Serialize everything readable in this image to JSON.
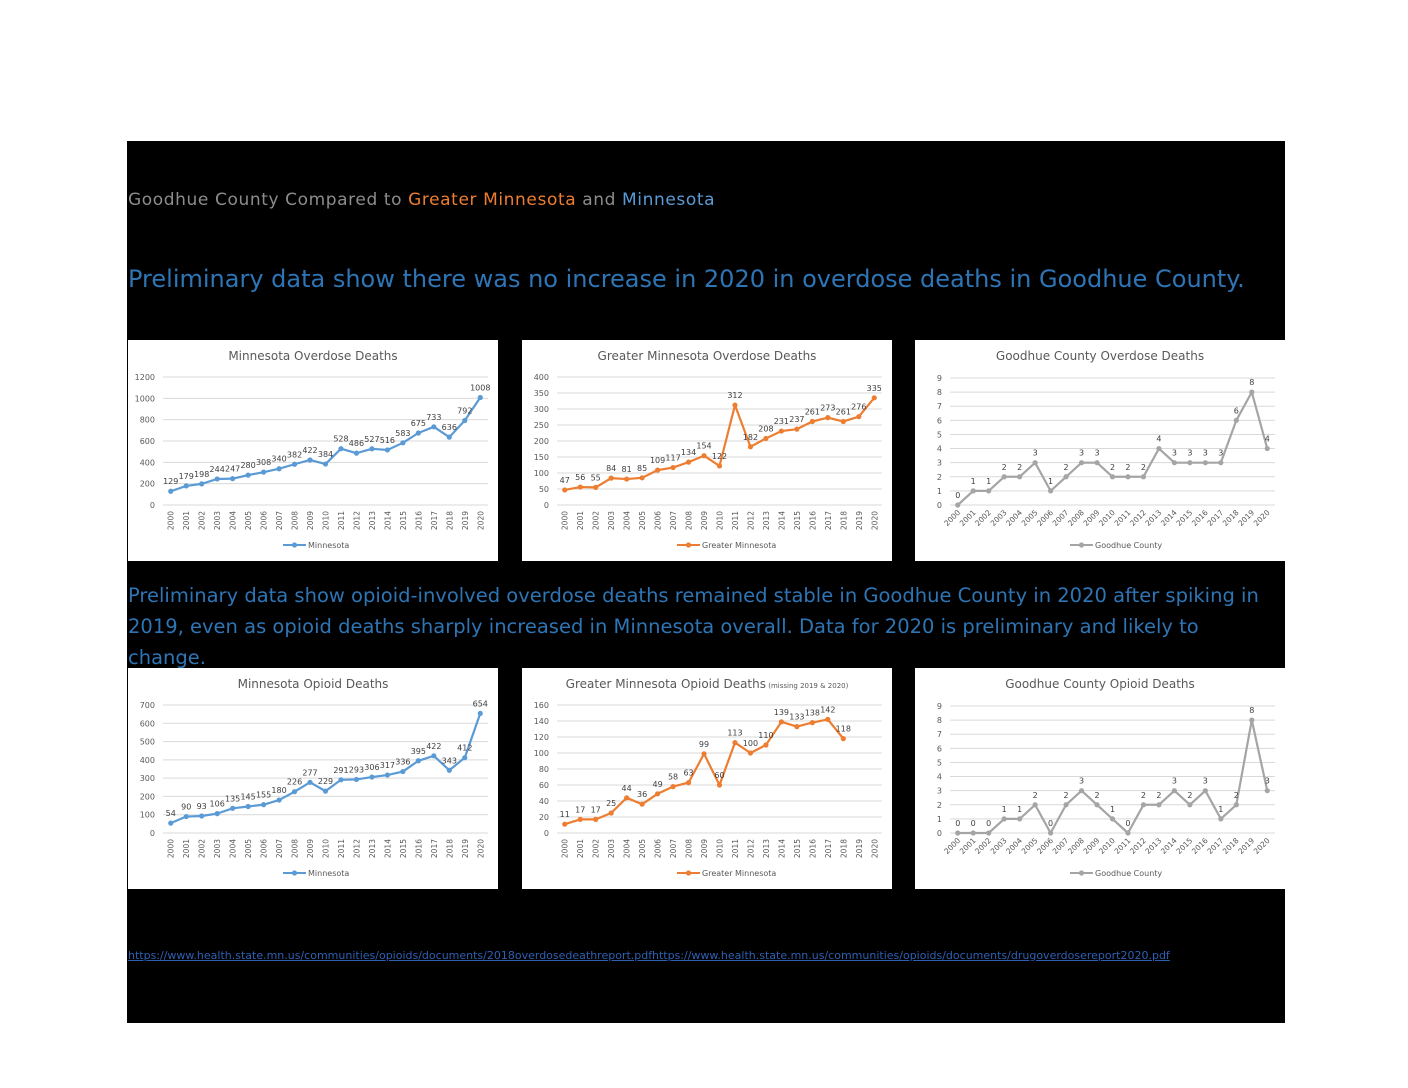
{
  "heading": {
    "part1": "Goodhue County",
    "part2": " Compared to ",
    "part3": "Greater Minnesota",
    "part4": " and ",
    "part5": "Minnesota"
  },
  "lead1": "Preliminary data show there was no increase in 2020 in overdose deaths in Goodhue County.",
  "lead2": "Preliminary data show opioid-involved overdose deaths remained stable in Goodhue County in 2020 after spiking in 2019, even as opioid deaths sharply increased in Minnesota overall.  Data for 2020 is preliminary and likely to change.",
  "links": [
    "https://www.health.state.mn.us/communities/opioids/documents/2018overdosedeathreport.pdf",
    "https://www.health.state.mn.us/communities/opioids/documents/drugoverdosereport2020.pdf"
  ],
  "colors": {
    "minnesota": "#5b9bd5",
    "greater_minnesota": "#ed7d31",
    "goodhue": "#a5a5a5",
    "heading_gray": "#8c8c8c",
    "lead_blue": "#2e75b6"
  },
  "chart_data": [
    {
      "type": "line",
      "title": "Minnesota Overdose Deaths",
      "subtitle": "",
      "legend": "bottom",
      "grid": true,
      "categories": [
        "2000",
        "2001",
        "2002",
        "2003",
        "2004",
        "2005",
        "2006",
        "2007",
        "2008",
        "2009",
        "2010",
        "2011",
        "2012",
        "2013",
        "2014",
        "2015",
        "2016",
        "2017",
        "2018",
        "2019",
        "2020"
      ],
      "series": [
        {
          "name": "Minnesota",
          "color": "#5b9bd5",
          "values": [
            129,
            179,
            198,
            244,
            247,
            280,
            308,
            340,
            382,
            422,
            384,
            528,
            486,
            527,
            516,
            583,
            675,
            733,
            636,
            792,
            1008
          ]
        }
      ],
      "ylim": [
        0,
        1200
      ],
      "yticks": [
        0,
        200,
        400,
        600,
        800,
        1000,
        1200
      ],
      "xlabel_rotation": "vertical"
    },
    {
      "type": "line",
      "title": "Greater Minnesota Overdose Deaths",
      "subtitle": "",
      "legend": "bottom",
      "grid": true,
      "categories": [
        "2000",
        "2001",
        "2002",
        "2003",
        "2004",
        "2005",
        "2006",
        "2007",
        "2008",
        "2009",
        "2010",
        "2011",
        "2012",
        "2013",
        "2014",
        "2015",
        "2016",
        "2017",
        "2018",
        "2019",
        "2020"
      ],
      "series": [
        {
          "name": "Greater Minnesota",
          "color": "#ed7d31",
          "values": [
            47,
            56,
            55,
            84,
            81,
            85,
            109,
            117,
            134,
            154,
            122,
            312,
            182,
            208,
            231,
            237,
            261,
            273,
            261,
            276,
            335
          ]
        }
      ],
      "ylim": [
        0,
        400
      ],
      "yticks": [
        0,
        50,
        100,
        150,
        200,
        250,
        300,
        350,
        400
      ],
      "xlabel_rotation": "vertical"
    },
    {
      "type": "line",
      "title": "Goodhue County Overdose Deaths",
      "subtitle": "",
      "legend": "bottom",
      "grid": true,
      "categories": [
        "2000",
        "2001",
        "2002",
        "2003",
        "2004",
        "2005",
        "2006",
        "2007",
        "2008",
        "2009",
        "2010",
        "2011",
        "2012",
        "2013",
        "2014",
        "2015",
        "2016",
        "2017",
        "2018",
        "2019",
        "2020"
      ],
      "series": [
        {
          "name": "Goodhue County",
          "color": "#a5a5a5",
          "values": [
            0,
            1,
            1,
            2,
            2,
            3,
            1,
            2,
            3,
            3,
            2,
            2,
            2,
            4,
            3,
            3,
            3,
            3,
            6,
            8,
            4
          ]
        }
      ],
      "ylim": [
        0,
        9
      ],
      "yticks": [
        0,
        1,
        2,
        3,
        4,
        5,
        6,
        7,
        8,
        9
      ],
      "xlabel_rotation": "diagonal"
    },
    {
      "type": "line",
      "title": "Minnesota Opioid Deaths",
      "subtitle": "",
      "legend": "bottom",
      "grid": true,
      "categories": [
        "2000",
        "2001",
        "2002",
        "2003",
        "2004",
        "2005",
        "2006",
        "2007",
        "2008",
        "2009",
        "2010",
        "2011",
        "2012",
        "2013",
        "2014",
        "2015",
        "2016",
        "2017",
        "2018",
        "2019",
        "2020"
      ],
      "series": [
        {
          "name": "Minnesota",
          "color": "#5b9bd5",
          "values": [
            54,
            90,
            93,
            106,
            135,
            145,
            155,
            180,
            226,
            277,
            229,
            291,
            293,
            306,
            317,
            336,
            395,
            422,
            343,
            412,
            654
          ]
        }
      ],
      "ylim": [
        0,
        700
      ],
      "yticks": [
        0,
        100,
        200,
        300,
        400,
        500,
        600,
        700
      ],
      "xlabel_rotation": "vertical"
    },
    {
      "type": "line",
      "title": "Greater Minnesota Opioid Deaths",
      "subtitle": "(missing 2019 & 2020)",
      "legend": "bottom",
      "grid": true,
      "categories": [
        "2000",
        "2001",
        "2002",
        "2003",
        "2004",
        "2005",
        "2006",
        "2007",
        "2008",
        "2009",
        "2010",
        "2011",
        "2012",
        "2013",
        "2014",
        "2015",
        "2016",
        "2017",
        "2018",
        "2019",
        "2020"
      ],
      "series": [
        {
          "name": "Greater Minnesota",
          "color": "#ed7d31",
          "values": [
            11,
            17,
            17,
            25,
            44,
            36,
            49,
            58,
            63,
            99,
            60,
            113,
            100,
            110,
            139,
            133,
            138,
            142,
            118,
            null,
            null
          ]
        }
      ],
      "ylim": [
        0,
        160
      ],
      "yticks": [
        0,
        20,
        40,
        60,
        80,
        100,
        120,
        140,
        160
      ],
      "xlabel_rotation": "vertical"
    },
    {
      "type": "line",
      "title": "Goodhue County Opioid Deaths",
      "subtitle": "",
      "legend": "bottom",
      "grid": true,
      "categories": [
        "2000",
        "2001",
        "2002",
        "2003",
        "2004",
        "2005",
        "2006",
        "2007",
        "2008",
        "2009",
        "2010",
        "2011",
        "2012",
        "2013",
        "2014",
        "2015",
        "2016",
        "2017",
        "2018",
        "2019",
        "2020"
      ],
      "series": [
        {
          "name": "Goodhue County",
          "color": "#a5a5a5",
          "values": [
            0,
            0,
            0,
            1,
            1,
            2,
            0,
            2,
            3,
            2,
            1,
            0,
            2,
            2,
            3,
            2,
            3,
            1,
            2,
            8,
            3
          ]
        }
      ],
      "ylim": [
        0,
        9
      ],
      "yticks": [
        0,
        1,
        2,
        3,
        4,
        5,
        6,
        7,
        8,
        9
      ],
      "xlabel_rotation": "diagonal"
    }
  ]
}
